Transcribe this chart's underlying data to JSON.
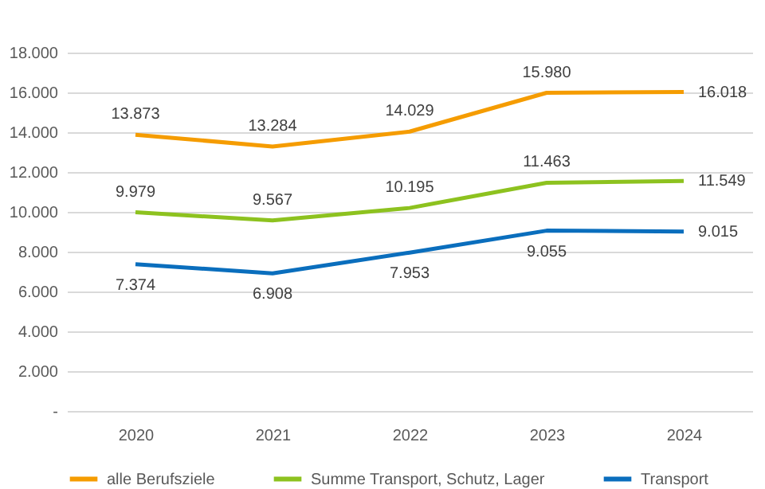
{
  "chart_data": {
    "type": "line",
    "categories": [
      "2020",
      "2021",
      "2022",
      "2023",
      "2024"
    ],
    "series": [
      {
        "name": "alle Berufsziele",
        "color": "#f59c00",
        "values": [
          13873,
          13284,
          14029,
          15980,
          16018
        ],
        "value_labels": [
          "13.873",
          "13.284",
          "14.029",
          "15.980",
          "16.018"
        ]
      },
      {
        "name": "Summe Transport, Schutz, Lager",
        "color": "#8dc21f",
        "values": [
          9979,
          9567,
          10195,
          11463,
          11549
        ],
        "value_labels": [
          "9.979",
          "9.567",
          "10.195",
          "11.463",
          "11.549"
        ]
      },
      {
        "name": "Transport",
        "color": "#0a6ebd",
        "values": [
          7374,
          6908,
          7953,
          9055,
          9015
        ],
        "value_labels": [
          "7.374",
          "6.908",
          "7.953",
          "9.055",
          "9.015"
        ]
      }
    ],
    "ylim": [
      0,
      18000
    ],
    "yticks": [
      {
        "value": 0,
        "label": "-"
      },
      {
        "value": 2000,
        "label": "2.000"
      },
      {
        "value": 4000,
        "label": "4.000"
      },
      {
        "value": 6000,
        "label": "6.000"
      },
      {
        "value": 8000,
        "label": "8.000"
      },
      {
        "value": 10000,
        "label": "10.000"
      },
      {
        "value": 12000,
        "label": "12.000"
      },
      {
        "value": 14000,
        "label": "14.000"
      },
      {
        "value": 16000,
        "label": "16.000"
      },
      {
        "value": 18000,
        "label": "18.000"
      }
    ],
    "grid": "y",
    "legend": "bottom",
    "marker": "none",
    "line_style": "solid"
  }
}
